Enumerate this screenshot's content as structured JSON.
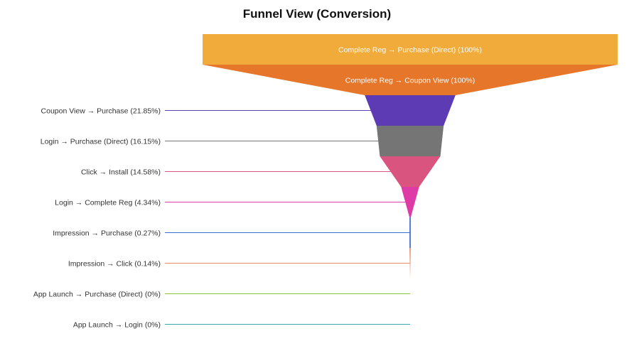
{
  "chart_data": {
    "type": "funnel",
    "title": "Funnel View (Conversion)",
    "stages": [
      {
        "label": "Complete Reg → Purchase (Direct) (100%)",
        "value": 100,
        "color": "#f0ab3a"
      },
      {
        "label": "Complete Reg → Coupon View (100%)",
        "value": 100,
        "color": "#e5762a"
      },
      {
        "label": "Coupon View → Purchase (21.85%)",
        "value": 21.85,
        "color": "#5c3bb5"
      },
      {
        "label": "Login → Purchase (Direct) (16.15%)",
        "value": 16.15,
        "color": "#757575"
      },
      {
        "label": "Click → Install (14.58%)",
        "value": 14.58,
        "color": "#d9547f"
      },
      {
        "label": "Login → Complete Reg (4.34%)",
        "value": 4.34,
        "color": "#df3ba7"
      },
      {
        "label": "Impression → Purchase (0.27%)",
        "value": 0.27,
        "color": "#3a6fd4"
      },
      {
        "label": "Impression → Click (0.14%)",
        "value": 0.14,
        "color": "#ee8a6a"
      },
      {
        "label": "App Launch → Purchase (Direct) (0%)",
        "value": 0,
        "color": "#8fbf3e"
      },
      {
        "label": "App Launch → Login (0%)",
        "value": 0,
        "color": "#3aa7a8"
      }
    ]
  }
}
